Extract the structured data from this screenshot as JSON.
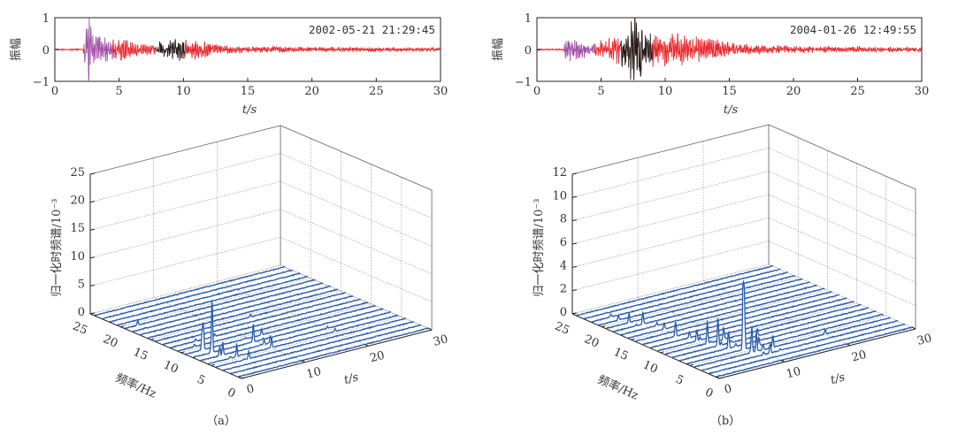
{
  "colors": {
    "p_wave": "#a050a8",
    "s_wave": "#2a1a1a",
    "coda": "#e8262b",
    "spectrum": "#2a5caa"
  },
  "chart_data": [
    {
      "type": "line",
      "panel": "a",
      "timestamp": "2002-05-21 21:29:45",
      "xlabel": "t/s",
      "ylabel": "振幅",
      "xlim": [
        0,
        30
      ],
      "ylim": [
        -1,
        1
      ],
      "xticks": [
        0,
        5,
        10,
        15,
        20,
        25,
        30
      ],
      "yticks": [
        -1,
        0,
        1
      ],
      "segments": [
        {
          "from": 0,
          "to": 2.3,
          "color": "coda"
        },
        {
          "from": 2.3,
          "to": 4.5,
          "color": "p_wave"
        },
        {
          "from": 4.5,
          "to": 7.8,
          "color": "coda"
        },
        {
          "from": 7.8,
          "to": 10.1,
          "color": "s_wave"
        },
        {
          "from": 10.1,
          "to": 30,
          "color": "coda"
        }
      ],
      "envelope": [
        [
          0,
          0.02
        ],
        [
          2.2,
          0.03
        ],
        [
          2.5,
          1.0
        ],
        [
          2.8,
          0.9
        ],
        [
          3.5,
          0.4
        ],
        [
          4.5,
          0.3
        ],
        [
          5,
          0.35
        ],
        [
          7,
          0.15
        ],
        [
          8,
          0.2
        ],
        [
          9.5,
          0.35
        ],
        [
          10.5,
          0.3
        ],
        [
          11.5,
          0.25
        ],
        [
          13,
          0.12
        ],
        [
          18,
          0.08
        ],
        [
          30,
          0.05
        ]
      ]
    },
    {
      "type": "line",
      "panel": "b",
      "timestamp": "2004-01-26 12:49:55",
      "xlabel": "t/s",
      "ylabel": "振幅",
      "xlim": [
        0,
        30
      ],
      "ylim": [
        -1,
        1
      ],
      "xticks": [
        0,
        5,
        10,
        15,
        20,
        25,
        30
      ],
      "yticks": [
        -1,
        0,
        1
      ],
      "segments": [
        {
          "from": 0,
          "to": 2.1,
          "color": "coda"
        },
        {
          "from": 2.1,
          "to": 4.5,
          "color": "p_wave"
        },
        {
          "from": 4.5,
          "to": 6.5,
          "color": "coda"
        },
        {
          "from": 6.5,
          "to": 9.0,
          "color": "s_wave"
        },
        {
          "from": 9.0,
          "to": 30,
          "color": "coda"
        }
      ],
      "envelope": [
        [
          0,
          0.02
        ],
        [
          2.05,
          0.02
        ],
        [
          2.1,
          0.35
        ],
        [
          4.5,
          0.2
        ],
        [
          6.5,
          0.45
        ],
        [
          7.5,
          1.0
        ],
        [
          8.5,
          0.6
        ],
        [
          9.5,
          0.5
        ],
        [
          11,
          0.45
        ],
        [
          14,
          0.3
        ],
        [
          16,
          0.15
        ],
        [
          20,
          0.1
        ],
        [
          30,
          0.06
        ]
      ]
    },
    {
      "type": "waterfall",
      "panel": "a",
      "caption": "（a）",
      "xlabel": "t/s",
      "ylabel": "频率/Hz",
      "zlabel": "归一化时频谱/10⁻³",
      "xlim": [
        0,
        30
      ],
      "ylim": [
        0,
        25
      ],
      "zlim": [
        0,
        25
      ],
      "xticks": [
        0,
        10,
        20,
        30
      ],
      "yticks": [
        0,
        5,
        10,
        15,
        20,
        25
      ],
      "zticks": [
        0,
        5,
        10,
        15,
        20,
        25
      ],
      "grid": true,
      "peaks_t_f_value": [
        [
          3.0,
          7.7,
          12.5
        ],
        [
          2.8,
          8.9,
          6.3
        ],
        [
          2.6,
          9.5,
          4
        ],
        [
          3.5,
          6.5,
          3
        ],
        [
          4.5,
          5.5,
          2.5
        ],
        [
          5.2,
          4.5,
          2
        ],
        [
          9.5,
          8,
          3.5
        ],
        [
          10,
          6,
          3
        ],
        [
          11,
          7,
          2
        ],
        [
          4,
          11,
          1.5
        ],
        [
          2,
          19,
          1
        ],
        [
          20,
          6,
          1
        ],
        [
          15,
          14,
          0.5
        ],
        [
          7,
          12,
          0.6
        ],
        [
          12,
          9,
          1.2
        ]
      ]
    },
    {
      "type": "waterfall",
      "panel": "b",
      "caption": "（b）",
      "xlabel": "t/s",
      "ylabel": "频率/Hz",
      "zlabel": "归一化时频谱/10⁻³",
      "xlim": [
        0,
        30
      ],
      "ylim": [
        0,
        25
      ],
      "zlim": [
        0,
        12
      ],
      "xticks": [
        0,
        10,
        20,
        30
      ],
      "yticks": [
        0,
        5,
        10,
        15,
        20,
        25
      ],
      "zticks": [
        0,
        2,
        4,
        6,
        8,
        10,
        12
      ],
      "grid": true,
      "peaks_t_f_value": [
        [
          8.8,
          5,
          8
        ],
        [
          8.6,
          5.5,
          6.5
        ],
        [
          7,
          8,
          3
        ],
        [
          6.5,
          9.5,
          2.5
        ],
        [
          9.5,
          4,
          2
        ],
        [
          10.5,
          3.5,
          1.8
        ],
        [
          6,
          11,
          2
        ],
        [
          5,
          13,
          1.5
        ],
        [
          11,
          6,
          1.5
        ],
        [
          12,
          4,
          1.2
        ],
        [
          3.5,
          19,
          1
        ],
        [
          4.5,
          18,
          1.2
        ],
        [
          3,
          21,
          0.8
        ],
        [
          5.5,
          16,
          1
        ],
        [
          13,
          8,
          0.8
        ],
        [
          20,
          4,
          0.5
        ],
        [
          7.5,
          7,
          2.2
        ],
        [
          9,
          9,
          1.5
        ]
      ]
    }
  ]
}
